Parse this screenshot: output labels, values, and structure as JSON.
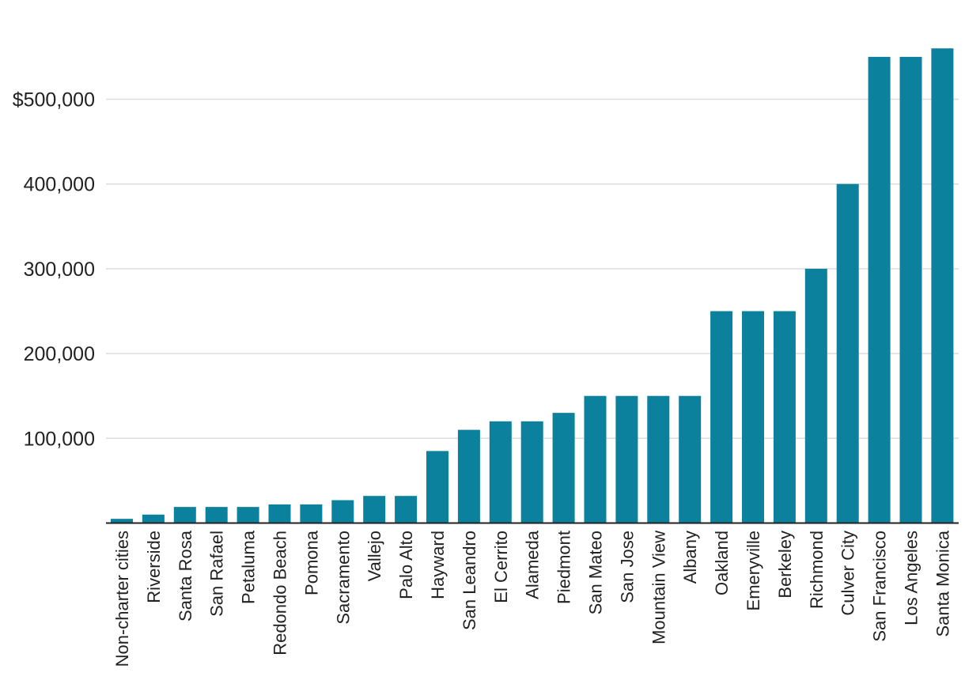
{
  "chart_data": {
    "type": "bar",
    "title": "",
    "xlabel": "",
    "ylabel": "",
    "ylim": [
      0,
      560000
    ],
    "yticks": [
      100000,
      200000,
      300000,
      400000,
      500000
    ],
    "ytick_labels": [
      "100,000",
      "200,000",
      "300,000",
      "400,000",
      "$500,000"
    ],
    "grid": true,
    "bar_color": "#0b819d",
    "categories": [
      "Non-charter cities",
      "Riverside",
      "Santa Rosa",
      "San Rafael",
      "Petaluma",
      "Redondo Beach",
      "Pomona",
      "Sacramento",
      "Vallejo",
      "Palo Alto",
      "Hayward",
      "San Leandro",
      "El Cerrito",
      "Alameda",
      "Piedmont",
      "San Mateo",
      "San Jose",
      "Mountain View",
      "Albany",
      "Oakland",
      "Emeryville",
      "Berkeley",
      "Richmond",
      "Culver City",
      "San Francisco",
      "Los Angeles",
      "Santa Monica"
    ],
    "values": [
      5000,
      10000,
      19000,
      19000,
      19000,
      22000,
      22000,
      27000,
      32000,
      32000,
      85000,
      110000,
      120000,
      120000,
      130000,
      150000,
      150000,
      150000,
      150000,
      250000,
      250000,
      250000,
      300000,
      400000,
      550000,
      550000,
      560000
    ]
  }
}
